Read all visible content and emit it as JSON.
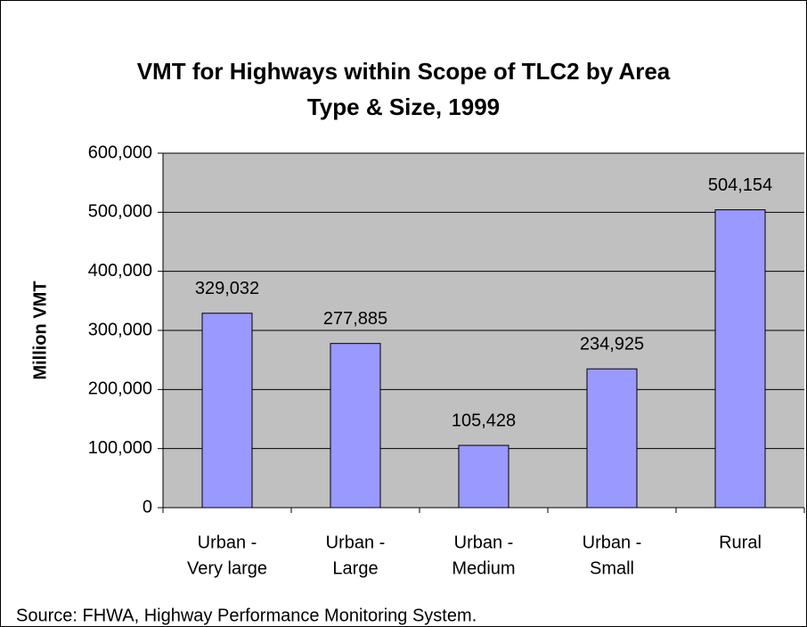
{
  "chart_data": {
    "type": "bar",
    "title": [
      "VMT for Highways within Scope of TLC2 by Area",
      "Type & Size, 1999"
    ],
    "y_label": "Million VMT",
    "source": "Source: FHWA, Highway Performance Monitoring System.",
    "categories": [
      [
        "Urban -",
        "Very large"
      ],
      [
        "Urban -",
        "Large"
      ],
      [
        "Urban -",
        "Medium"
      ],
      [
        "Urban -",
        "Small"
      ],
      [
        "Rural"
      ]
    ],
    "values": [
      329032,
      277885,
      105428,
      234925,
      504154
    ],
    "value_labels": [
      "329,032",
      "277,885",
      "105,428",
      "234,925",
      "504,154"
    ],
    "color": "#9999ff",
    "ylim": [
      0,
      600000
    ],
    "yticks": [
      0,
      {
        "value": 100000,
        "label": "100,000"
      },
      {
        "value": 200000,
        "label": "200,000"
      },
      {
        "value": 300000,
        "label": "300,000"
      },
      {
        "value": 400000,
        "label": "400,000"
      },
      {
        "value": 500000,
        "label": "500,000"
      },
      {
        "value": 600000,
        "label": "600,000"
      }
    ],
    "grid": true
  }
}
